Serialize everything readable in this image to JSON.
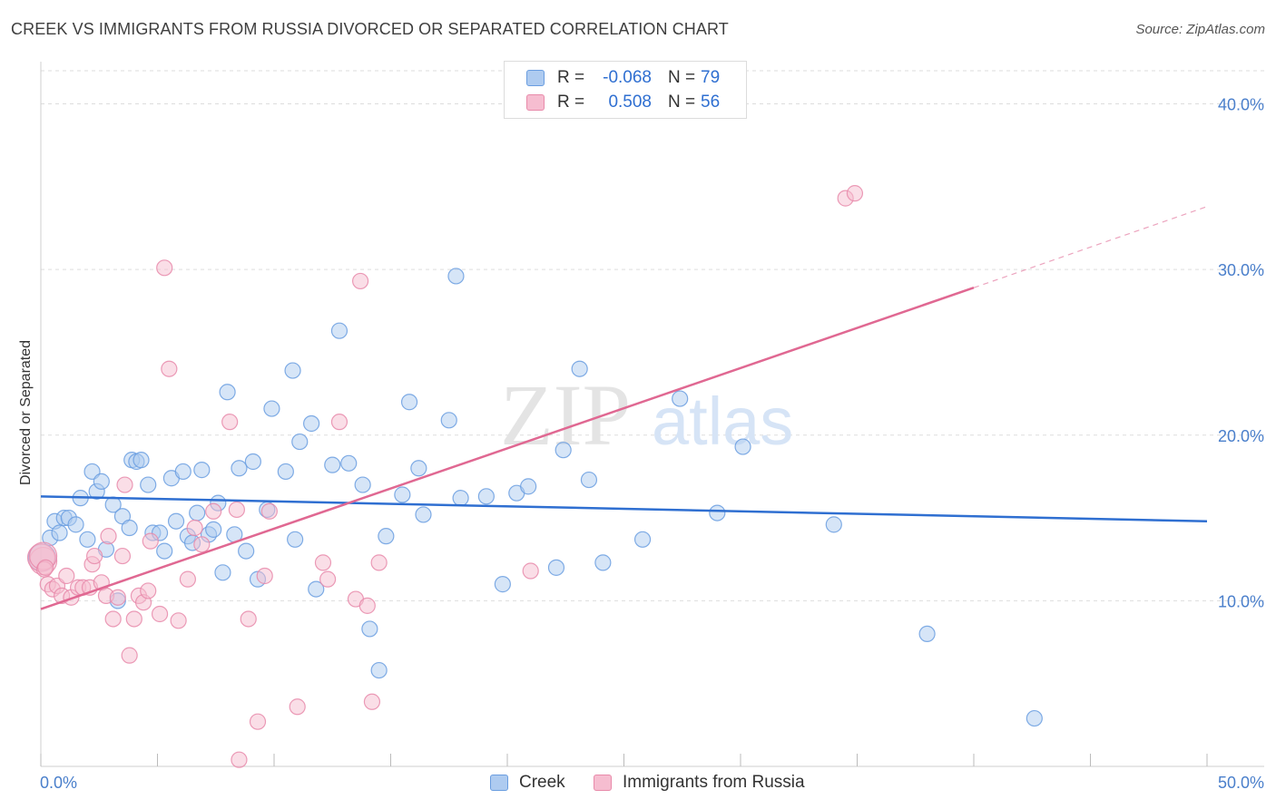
{
  "title": "CREEK VS IMMIGRANTS FROM RUSSIA DIVORCED OR SEPARATED CORRELATION CHART",
  "source": "Source: ZipAtlas.com",
  "watermark": {
    "zip": "ZIP",
    "atlas": "atlas"
  },
  "colors": {
    "creek_fill": "#aecbf0",
    "creek_stroke": "#6a9de0",
    "creek_line": "#2f6fd1",
    "russia_fill": "#f6bdd0",
    "russia_stroke": "#e88aaa",
    "russia_line": "#e06892",
    "tick_text": "#4a7fcb",
    "grid": "#dddddd"
  },
  "legend_top": [
    {
      "r_label": "R =",
      "r_value": "-0.068",
      "n_label": "N =",
      "n_value": "79"
    },
    {
      "r_label": "R =",
      "r_value": "0.508",
      "n_label": "N =",
      "n_value": "56"
    }
  ],
  "legend_bottom": [
    "Creek",
    "Immigrants from Russia"
  ],
  "chart_data": {
    "type": "scatter",
    "xlabel": "",
    "ylabel": "Divorced or Separated",
    "xlim": [
      0,
      50
    ],
    "ylim": [
      0,
      42
    ],
    "x_tick_labels": [
      "0.0%",
      "50.0%"
    ],
    "y_ticks": [
      10,
      20,
      30,
      40
    ],
    "y_tick_labels": [
      "10.0%",
      "20.0%",
      "30.0%",
      "40.0%"
    ],
    "grid": "horizontal dashed",
    "series": [
      {
        "name": "Creek",
        "points": [
          [
            0.4,
            13.8
          ],
          [
            0.6,
            14.8
          ],
          [
            0.8,
            14.1
          ],
          [
            1.0,
            15.0
          ],
          [
            1.2,
            15.0
          ],
          [
            1.5,
            14.6
          ],
          [
            1.7,
            16.2
          ],
          [
            2.0,
            13.7
          ],
          [
            2.2,
            17.8
          ],
          [
            2.4,
            16.6
          ],
          [
            2.6,
            17.2
          ],
          [
            2.8,
            13.1
          ],
          [
            3.1,
            15.8
          ],
          [
            3.3,
            10.0
          ],
          [
            3.5,
            15.1
          ],
          [
            3.8,
            14.4
          ],
          [
            3.9,
            18.5
          ],
          [
            4.1,
            18.4
          ],
          [
            4.3,
            18.5
          ],
          [
            4.6,
            17.0
          ],
          [
            4.8,
            14.1
          ],
          [
            5.1,
            14.1
          ],
          [
            5.3,
            13.0
          ],
          [
            5.6,
            17.4
          ],
          [
            5.8,
            14.8
          ],
          [
            6.1,
            17.8
          ],
          [
            6.3,
            13.9
          ],
          [
            6.5,
            13.5
          ],
          [
            6.7,
            15.3
          ],
          [
            6.9,
            17.9
          ],
          [
            7.2,
            14.0
          ],
          [
            7.4,
            14.3
          ],
          [
            7.6,
            15.9
          ],
          [
            7.8,
            11.7
          ],
          [
            8.0,
            22.6
          ],
          [
            8.3,
            14.0
          ],
          [
            8.5,
            18.0
          ],
          [
            8.8,
            13.0
          ],
          [
            9.1,
            18.4
          ],
          [
            9.3,
            11.3
          ],
          [
            9.7,
            15.5
          ],
          [
            9.9,
            21.6
          ],
          [
            10.5,
            17.8
          ],
          [
            10.8,
            23.9
          ],
          [
            10.9,
            13.7
          ],
          [
            11.1,
            19.6
          ],
          [
            11.6,
            20.7
          ],
          [
            11.8,
            10.7
          ],
          [
            12.5,
            18.2
          ],
          [
            12.8,
            26.3
          ],
          [
            13.2,
            18.3
          ],
          [
            13.8,
            17.0
          ],
          [
            14.1,
            8.3
          ],
          [
            14.5,
            5.8
          ],
          [
            14.8,
            13.9
          ],
          [
            15.5,
            16.4
          ],
          [
            15.8,
            22.0
          ],
          [
            16.2,
            18.0
          ],
          [
            16.4,
            15.2
          ],
          [
            17.5,
            20.9
          ],
          [
            17.8,
            29.6
          ],
          [
            18.0,
            16.2
          ],
          [
            19.1,
            16.3
          ],
          [
            19.8,
            11.0
          ],
          [
            20.4,
            16.5
          ],
          [
            20.9,
            16.9
          ],
          [
            22.1,
            12.0
          ],
          [
            22.4,
            19.1
          ],
          [
            23.1,
            24.0
          ],
          [
            23.5,
            17.3
          ],
          [
            24.1,
            12.3
          ],
          [
            25.8,
            13.7
          ],
          [
            27.4,
            22.2
          ],
          [
            29.0,
            15.3
          ],
          [
            30.1,
            19.3
          ],
          [
            34.0,
            14.6
          ],
          [
            38.0,
            8.0
          ],
          [
            42.6,
            2.9
          ],
          [
            0.05,
            12.6
          ]
        ],
        "trend": {
          "x1": 0,
          "y1": 16.3,
          "x2": 50,
          "y2": 14.8
        }
      },
      {
        "name": "Immigrants from Russia",
        "points": [
          [
            0.1,
            12.4
          ],
          [
            0.3,
            11.0
          ],
          [
            0.5,
            10.7
          ],
          [
            0.7,
            10.9
          ],
          [
            0.9,
            10.3
          ],
          [
            1.1,
            11.5
          ],
          [
            1.3,
            10.2
          ],
          [
            1.6,
            10.8
          ],
          [
            1.8,
            10.8
          ],
          [
            2.1,
            10.8
          ],
          [
            2.2,
            12.2
          ],
          [
            2.3,
            12.7
          ],
          [
            2.6,
            11.1
          ],
          [
            2.8,
            10.3
          ],
          [
            2.9,
            13.9
          ],
          [
            3.1,
            8.9
          ],
          [
            3.3,
            10.2
          ],
          [
            3.5,
            12.7
          ],
          [
            3.6,
            17.0
          ],
          [
            3.8,
            6.7
          ],
          [
            4.0,
            8.9
          ],
          [
            4.2,
            10.3
          ],
          [
            4.4,
            9.9
          ],
          [
            4.6,
            10.6
          ],
          [
            4.7,
            13.6
          ],
          [
            5.1,
            9.2
          ],
          [
            5.3,
            30.1
          ],
          [
            5.5,
            24.0
          ],
          [
            5.9,
            8.8
          ],
          [
            6.3,
            11.3
          ],
          [
            6.6,
            14.4
          ],
          [
            6.9,
            13.4
          ],
          [
            7.4,
            15.4
          ],
          [
            8.1,
            20.8
          ],
          [
            8.4,
            15.5
          ],
          [
            8.5,
            0.4
          ],
          [
            8.9,
            8.9
          ],
          [
            9.3,
            2.7
          ],
          [
            9.6,
            11.5
          ],
          [
            9.8,
            15.4
          ],
          [
            11.0,
            3.6
          ],
          [
            12.1,
            12.3
          ],
          [
            12.3,
            11.3
          ],
          [
            12.8,
            20.8
          ],
          [
            13.5,
            10.1
          ],
          [
            13.7,
            29.3
          ],
          [
            14.0,
            9.7
          ],
          [
            14.2,
            3.9
          ],
          [
            14.5,
            12.3
          ],
          [
            21.0,
            11.8
          ],
          [
            34.5,
            34.3
          ],
          [
            34.9,
            34.6
          ],
          [
            0.02,
            12.6
          ],
          [
            0.1,
            12.7
          ],
          [
            0.15,
            11.9
          ],
          [
            0.2,
            12.0
          ]
        ],
        "trend": {
          "x1": 0,
          "y1": 9.5,
          "x2": 40,
          "y2": 28.9
        },
        "trend_dashed_extension": {
          "x1": 40,
          "y1": 28.9,
          "x2": 50,
          "y2": 33.8
        }
      }
    ]
  }
}
